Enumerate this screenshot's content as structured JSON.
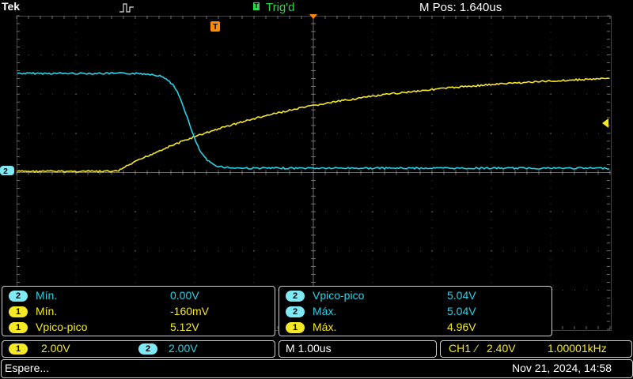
{
  "header": {
    "brand": "Tek",
    "trigger_status": "Trig'd",
    "m_pos": "M Pos: 1.640us",
    "trigger_marker_label": "T"
  },
  "markers": {
    "ch2_ground": "2"
  },
  "colors": {
    "ch1": "#f5e826",
    "ch2": "#28d3e8",
    "grid": "#6a6a6a",
    "trigger": "#ff8c00",
    "trig_status": "#2fd84a"
  },
  "measurements_left": [
    {
      "ch": "2",
      "label": "Mín.",
      "value": "0.00V"
    },
    {
      "ch": "1",
      "label": "Mín.",
      "value": "-160mV"
    },
    {
      "ch": "1",
      "label": "Vpico-pico",
      "value": "5.12V"
    }
  ],
  "measurements_right": [
    {
      "ch": "2",
      "label": "Vpico-pico",
      "value": "5.04V"
    },
    {
      "ch": "2",
      "label": "Máx.",
      "value": "5.04V"
    },
    {
      "ch": "1",
      "label": "Máx.",
      "value": "4.96V"
    }
  ],
  "channels": {
    "ch1": {
      "badge": "1",
      "scale": "2.00V"
    },
    "ch2": {
      "badge": "2",
      "scale": "2.00V"
    }
  },
  "timebase": "M 1.00us",
  "trigger_info": {
    "source": "CH1",
    "slope": "⁄",
    "level": "2.40V",
    "frequency": "1.00001kHz"
  },
  "status": {
    "message": "Espere...",
    "datetime": "Nov 21, 2024, 14:58"
  }
}
